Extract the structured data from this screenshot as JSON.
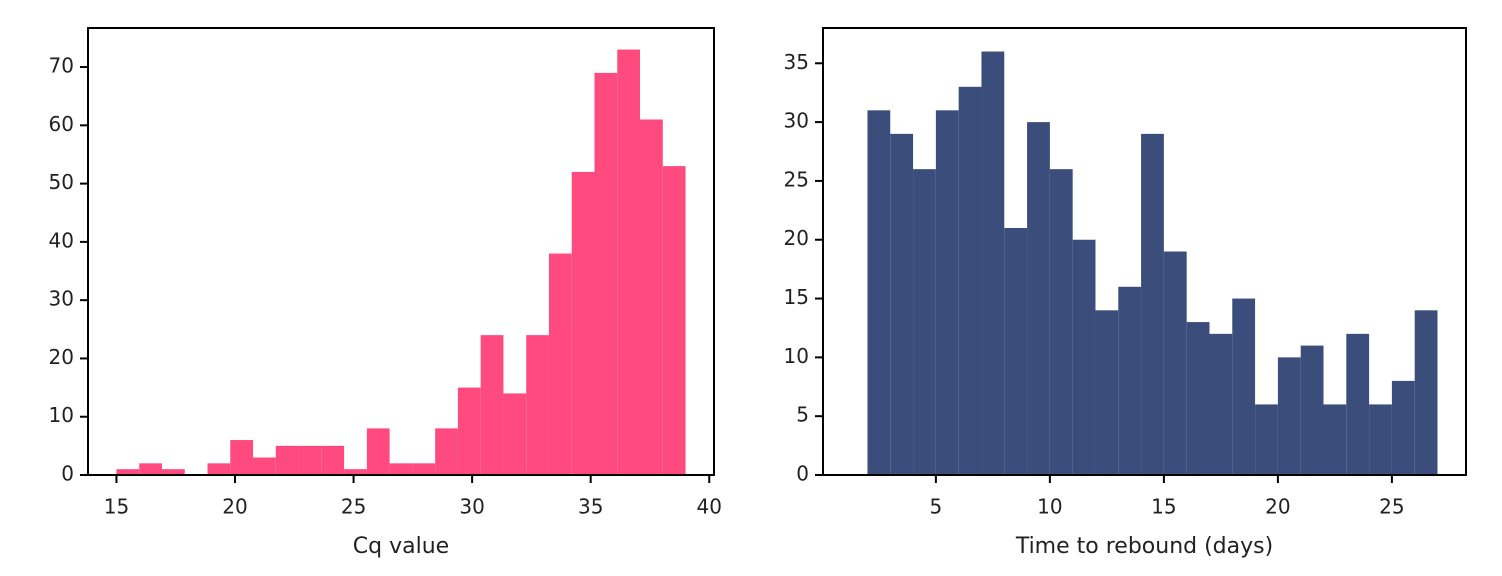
{
  "chart_data": [
    {
      "type": "histogram",
      "xlabel": "Cq value",
      "color": "#ff4a80",
      "bins": [
        15,
        15.96,
        16.92,
        17.88,
        18.84,
        19.8,
        20.76,
        21.72,
        22.68,
        23.64,
        24.6,
        25.56,
        26.52,
        27.48,
        28.44,
        29.4,
        30.36,
        31.32,
        32.28,
        33.24,
        34.2,
        35.16,
        36.12,
        37.08,
        38.04,
        39.0
      ],
      "counts": [
        1,
        2,
        1,
        0,
        2,
        6,
        3,
        5,
        5,
        5,
        1,
        8,
        2,
        2,
        8,
        15,
        24,
        14,
        24,
        38,
        52,
        69,
        73,
        61,
        53
      ],
      "xlim": [
        13.8,
        40.2
      ],
      "xticks": [
        15,
        20,
        25,
        30,
        35,
        40
      ],
      "ylim": [
        0,
        76.7
      ],
      "yticks": [
        0,
        10,
        20,
        30,
        40,
        50,
        60,
        70
      ]
    },
    {
      "type": "histogram",
      "xlabel": "Time to rebound (days)",
      "color": "#3b4d7a",
      "bins": [
        2,
        3,
        4,
        5,
        6,
        7,
        8,
        9,
        10,
        11,
        12,
        13,
        14,
        15,
        16,
        17,
        18,
        19,
        20,
        21,
        22,
        23,
        24,
        25,
        26,
        27
      ],
      "counts": [
        31,
        29,
        26,
        31,
        33,
        36,
        21,
        30,
        26,
        20,
        14,
        16,
        29,
        19,
        13,
        12,
        15,
        6,
        10,
        11,
        6,
        12,
        6,
        8,
        14
      ],
      "xlim": [
        0.05,
        28.25
      ],
      "xticks": [
        5,
        10,
        15,
        20,
        25
      ],
      "ylim": [
        0,
        38
      ],
      "yticks": [
        0,
        5,
        10,
        15,
        20,
        25,
        30,
        35
      ]
    }
  ]
}
